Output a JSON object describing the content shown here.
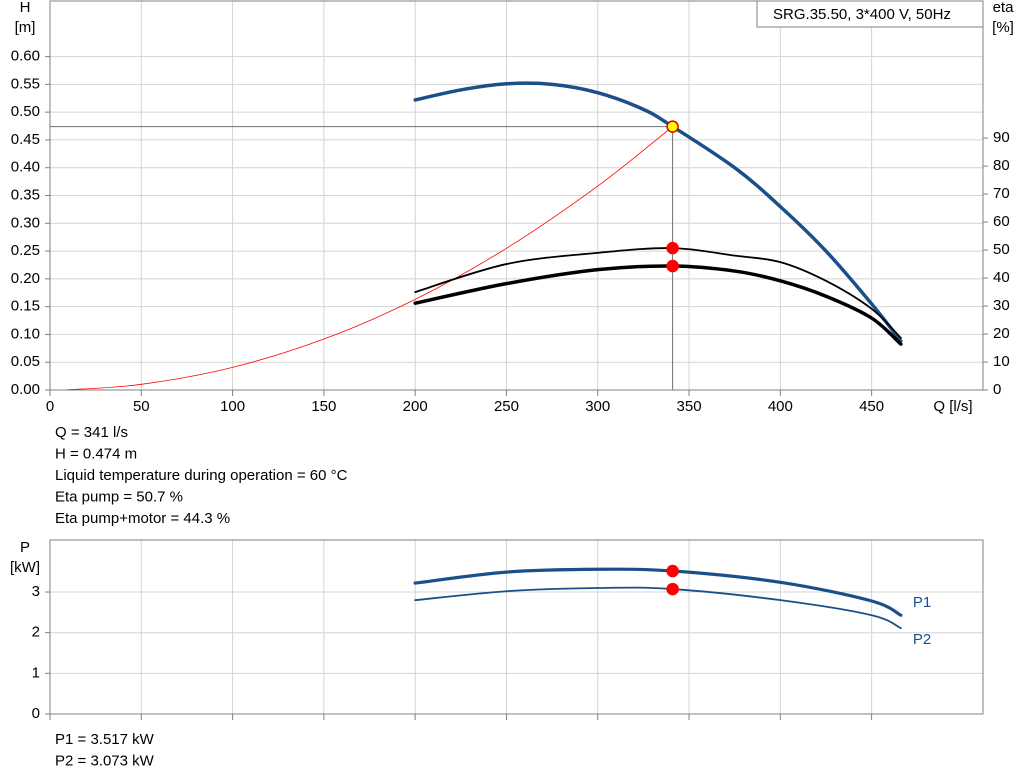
{
  "chart_data": [
    {
      "type": "line",
      "title": "SRG.35.50, 3*400 V, 50Hz",
      "ylabel": [
        "H",
        "[m]"
      ],
      "y2label": [
        "eta",
        "[%]"
      ],
      "xlabel": "Q [l/s]",
      "xlim": [
        0,
        511
      ],
      "xticks": [
        0,
        50,
        100,
        150,
        200,
        250,
        300,
        350,
        400,
        450
      ],
      "ylim": [
        0,
        0.7
      ],
      "yticks": [
        {
          "value": 0,
          "label": "0.00"
        },
        {
          "value": 0.05,
          "label": "0.05"
        },
        {
          "value": 0.1,
          "label": "0.10"
        },
        {
          "value": 0.15,
          "label": "0.15"
        },
        {
          "value": 0.2,
          "label": "0.20"
        },
        {
          "value": 0.25,
          "label": "0.25"
        },
        {
          "value": 0.3,
          "label": "0.30"
        },
        {
          "value": 0.35,
          "label": "0.35"
        },
        {
          "value": 0.4,
          "label": "0.40"
        },
        {
          "value": 0.45,
          "label": "0.45"
        },
        {
          "value": 0.5,
          "label": "0.50"
        },
        {
          "value": 0.55,
          "label": "0.55"
        },
        {
          "value": 0.6,
          "label": "0.60"
        }
      ],
      "y2lim": [
        0,
        139
      ],
      "y2ticks": [
        0,
        10,
        20,
        30,
        40,
        50,
        60,
        70,
        80,
        90
      ],
      "grid": true,
      "xtick_labels": true,
      "series": [
        {
          "color": "#ff0000",
          "line_width": 0.8,
          "x": [
            10,
            50,
            100,
            150,
            200,
            250,
            300,
            341
          ],
          "values": [
            0.0004,
            0.0102,
            0.0408,
            0.0917,
            0.163,
            0.255,
            0.367,
            0.474
          ]
        },
        {
          "color": "#1a4f8a",
          "line_width": 3.5,
          "x": [
            200,
            225,
            250,
            275,
            300,
            325,
            341,
            375,
            400,
            425,
            450,
            466
          ],
          "values": [
            0.522,
            0.54,
            0.551,
            0.55,
            0.535,
            0.505,
            0.474,
            0.4,
            0.33,
            0.25,
            0.155,
            0.088
          ]
        },
        {
          "color": "#000000",
          "line_width": 1.8,
          "axis": "y2",
          "x": [
            200,
            250,
            300,
            341,
            375,
            400,
            425,
            450,
            466
          ],
          "values": [
            35,
            45,
            49,
            50.7,
            48,
            45.7,
            39,
            29,
            18.6
          ]
        },
        {
          "color": "#000000",
          "line_width": 3.5,
          "axis": "y2",
          "x": [
            200,
            250,
            300,
            341,
            375,
            400,
            425,
            450,
            466
          ],
          "values": [
            31,
            38,
            43,
            44.3,
            42.5,
            39,
            33.5,
            25.7,
            16.4
          ]
        }
      ],
      "markers": [
        {
          "x": 341,
          "y": 0.474,
          "fill": "#ffff00",
          "stroke": "#e00000"
        },
        {
          "x": 341,
          "y": 50.7,
          "axis": "y2",
          "fill": "#ff0000",
          "stroke": "#ff0000"
        },
        {
          "x": 341,
          "y": 44.3,
          "axis": "y2",
          "fill": "#ff0000",
          "stroke": "#ff0000"
        }
      ],
      "notes": [
        "Q = 341 l/s",
        "H = 0.474 m",
        "Liquid temperature during operation = 60 °C",
        "Eta pump = 50.7 %",
        "Eta pump+motor = 44.3 %"
      ]
    },
    {
      "type": "line",
      "ylabel": [
        "P",
        "[kW]"
      ],
      "xlim": [
        0,
        511
      ],
      "xticks": [
        0,
        50,
        100,
        150,
        200,
        250,
        300,
        350,
        400,
        450
      ],
      "ylim": [
        0,
        4.28
      ],
      "yticks": [
        0,
        1,
        2,
        3
      ],
      "grid": true,
      "xtick_labels": false,
      "series": [
        {
          "name": "P1",
          "color": "#1a4f8a",
          "line_width": 3.2,
          "x": [
            200,
            250,
            300,
            341,
            400,
            450,
            466
          ],
          "values": [
            3.22,
            3.49,
            3.56,
            3.517,
            3.24,
            2.78,
            2.43
          ]
        },
        {
          "name": "P2",
          "color": "#1a4f8a",
          "line_width": 1.8,
          "x": [
            200,
            250,
            300,
            341,
            400,
            450,
            466
          ],
          "values": [
            2.8,
            3.02,
            3.1,
            3.073,
            2.8,
            2.43,
            2.11
          ]
        }
      ],
      "markers": [
        {
          "x": 341,
          "y": 3.517,
          "fill": "#ff0000",
          "stroke": "#ff0000"
        },
        {
          "x": 341,
          "y": 3.073,
          "fill": "#ff0000",
          "stroke": "#ff0000"
        }
      ],
      "notes": [
        "P1 = 3.517 kW",
        "P2 = 3.073 kW"
      ]
    }
  ]
}
